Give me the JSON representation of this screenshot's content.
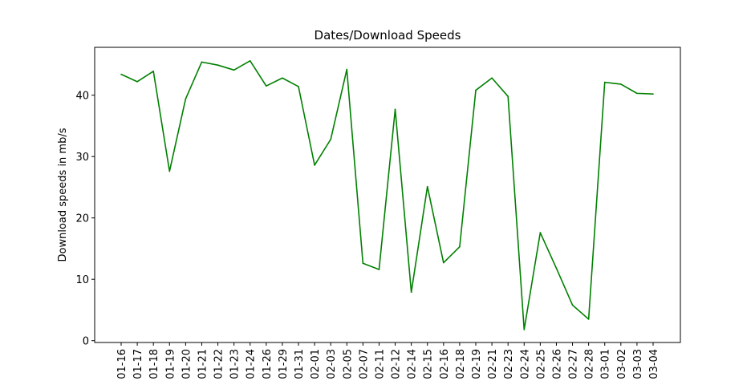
{
  "chart_data": {
    "type": "line",
    "title": "Dates/Download Speeds",
    "xlabel": "",
    "ylabel": "Download speeds in mb/s",
    "ylim": [
      -0.3,
      47.8
    ],
    "yticks": [
      0,
      10,
      20,
      30,
      40
    ],
    "grid": false,
    "line_color": "#008000",
    "categories": [
      "01-16",
      "01-17",
      "01-18",
      "01-19",
      "01-20",
      "01-21",
      "01-22",
      "01-23",
      "01-24",
      "01-26",
      "01-29",
      "01-31",
      "02-01",
      "02-03",
      "02-05",
      "02-07",
      "02-11",
      "02-12",
      "02-14",
      "02-15",
      "02-16",
      "02-18",
      "02-19",
      "02-21",
      "02-23",
      "02-24",
      "02-25",
      "02-26",
      "02-27",
      "02-28",
      "03-01",
      "03-02",
      "03-03",
      "03-04"
    ],
    "values": [
      43.4,
      42.2,
      43.9,
      27.6,
      39.4,
      45.4,
      44.9,
      44.1,
      45.6,
      41.5,
      42.8,
      41.4,
      28.6,
      32.8,
      44.2,
      12.6,
      11.6,
      37.7,
      7.9,
      25.1,
      12.7,
      15.3,
      40.8,
      42.8,
      39.8,
      1.8,
      17.6,
      11.8,
      5.8,
      3.5,
      42.1,
      41.8,
      40.3,
      40.2
    ]
  }
}
